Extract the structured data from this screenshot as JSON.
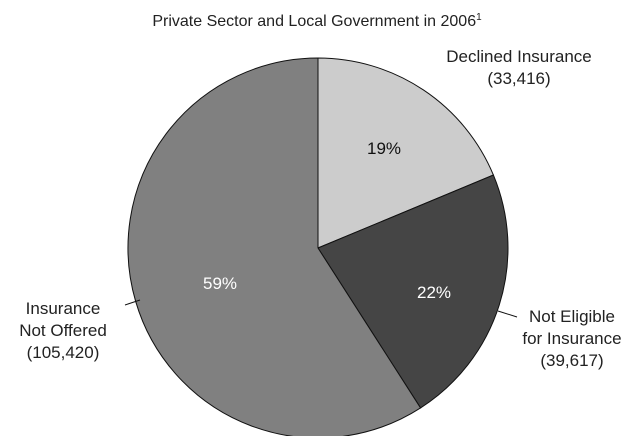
{
  "chart_data": {
    "type": "pie",
    "title": "Private Sector and Local Government in 2006",
    "title_footnote": "1",
    "start_angle_deg": 0,
    "direction": "clockwise",
    "slices": [
      {
        "label_lines": [
          "Declined Insurance",
          "(33,416)"
        ],
        "value": 33416,
        "percent_label": "19%",
        "color": "#cccccc",
        "percent_color": "#111111"
      },
      {
        "label_lines": [
          "Not Eligible",
          "for Insurance",
          "(39,617)"
        ],
        "value": 39617,
        "percent_label": "22%",
        "color": "#454545",
        "percent_color": "#ffffff"
      },
      {
        "label_lines": [
          "Insurance",
          "Not Offered",
          "(105,420)"
        ],
        "value": 105420,
        "percent_label": "59%",
        "color": "#808080",
        "percent_color": "#ffffff"
      }
    ],
    "legend": "none"
  }
}
